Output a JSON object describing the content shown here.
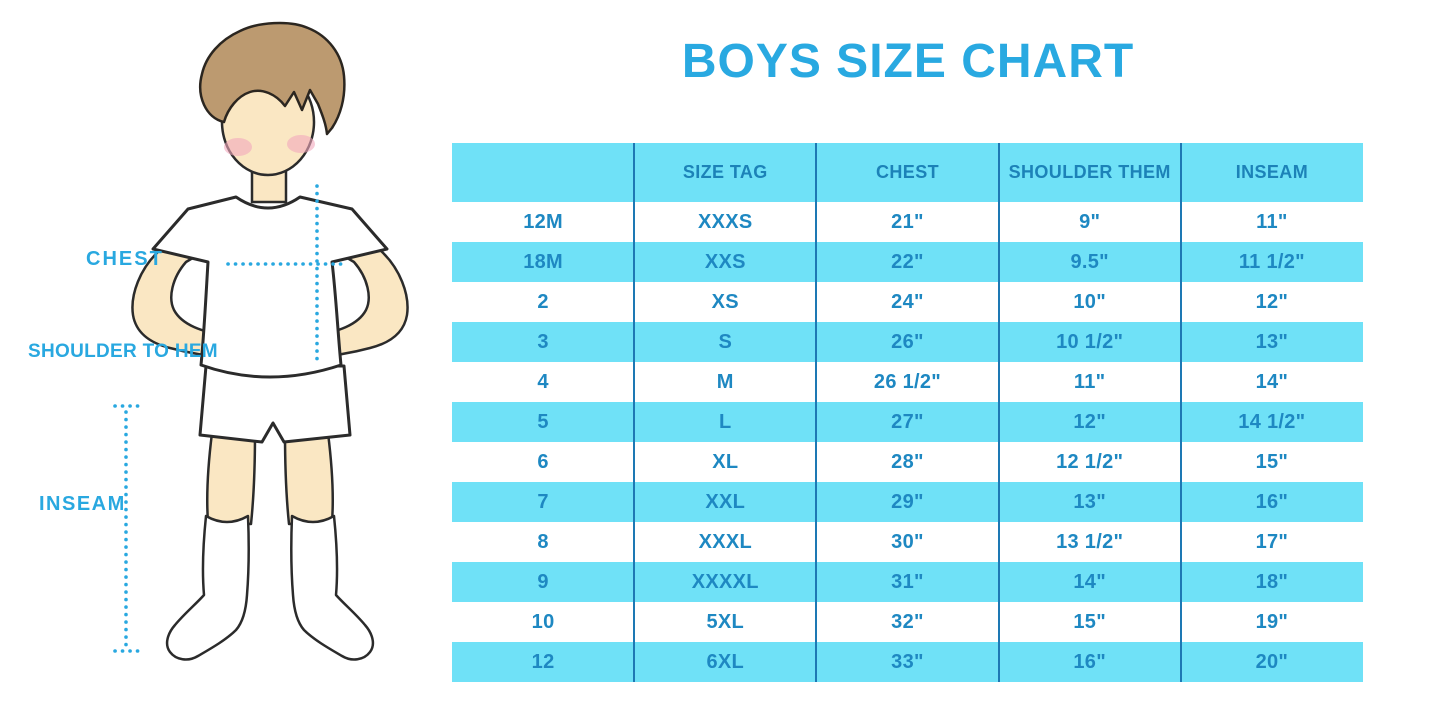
{
  "title": "BOYS SIZE CHART",
  "figure": {
    "labels": {
      "chest": "CHEST",
      "shoulder_to_hem": "SHOULDER TO HEM",
      "inseam": "INSEAM"
    }
  },
  "chart_data": {
    "type": "table",
    "title": "BOYS SIZE CHART",
    "columns": [
      "",
      "SIZE TAG",
      "CHEST",
      "SHOULDER THEM",
      "INSEAM"
    ],
    "rows": [
      [
        "12M",
        "XXXS",
        "21\"",
        "9\"",
        "11\""
      ],
      [
        "18M",
        "XXS",
        "22\"",
        "9.5\"",
        "11 1/2\""
      ],
      [
        "2",
        "XS",
        "24\"",
        "10\"",
        "12\""
      ],
      [
        "3",
        "S",
        "26\"",
        "10 1/2\"",
        "13\""
      ],
      [
        "4",
        "M",
        "26 1/2\"",
        "11\"",
        "14\""
      ],
      [
        "5",
        "L",
        "27\"",
        "12\"",
        "14 1/2\""
      ],
      [
        "6",
        "XL",
        "28\"",
        "12 1/2\"",
        "15\""
      ],
      [
        "7",
        "XXL",
        "29\"",
        "13\"",
        "16\""
      ],
      [
        "8",
        "XXXL",
        "30\"",
        "13 1/2\"",
        "17\""
      ],
      [
        "9",
        "XXXXL",
        "31\"",
        "14\"",
        "18\""
      ],
      [
        "10",
        "5XL",
        "32\"",
        "15\"",
        "19\""
      ],
      [
        "12",
        "6XL",
        "33\"",
        "16\"",
        "20\""
      ]
    ],
    "layout": {
      "striping": "header and alternate data rows cyan, others white",
      "grid": "vertical column dividers only",
      "legend_position": "none"
    }
  },
  "colors": {
    "title_blue": "#29A9E1",
    "table_text_blue": "#1E88C2",
    "stripe_cyan": "#6FE1F7",
    "divider_blue": "#1D78B4",
    "dotted_line_blue": "#29A8E0",
    "skin": "#FAE7C3",
    "hair": "#BC9A70",
    "blush": "#F2A9BC",
    "outline": "#2B2B2B"
  }
}
